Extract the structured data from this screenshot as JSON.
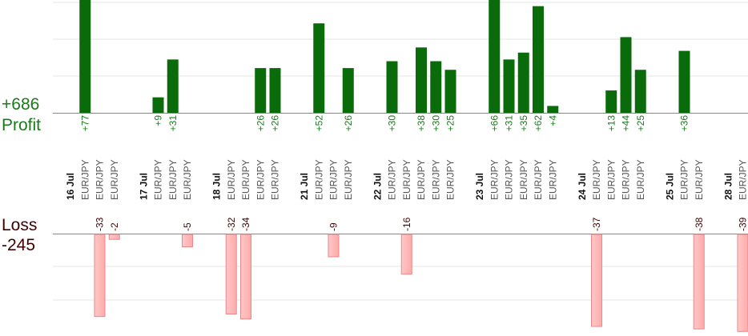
{
  "summary": {
    "profit_total": "+686",
    "profit_label": "Profit",
    "loss_label": "Loss",
    "loss_total": "-245"
  },
  "colors": {
    "profit_bar": "#0a6b0a",
    "profit_text": "#1a7a1a",
    "loss_bar": "#ffaaaa",
    "loss_text": "#400000",
    "grid": "#e6e6e6",
    "axis": "#888888"
  },
  "chart_data": {
    "type": "bar",
    "profit_ylim": [
      0,
      70
    ],
    "loss_ylim": [
      0,
      30
    ],
    "grid": true,
    "slots": [
      {
        "label": "16 Jul",
        "kind": "date"
      },
      {
        "label": "EUR/JPY",
        "kind": "pair",
        "profit": "+77",
        "value": 77
      },
      {
        "label": "EUR/JPY",
        "kind": "pair",
        "loss": "-33",
        "value": -33
      },
      {
        "label": "EUR/JPY",
        "kind": "pair",
        "loss": "-2",
        "value": -2
      },
      {
        "label": "",
        "kind": "gap"
      },
      {
        "label": "17 Jul",
        "kind": "date"
      },
      {
        "label": "EUR/JPY",
        "kind": "pair",
        "profit": "+9",
        "value": 9
      },
      {
        "label": "EUR/JPY",
        "kind": "pair",
        "profit": "+31",
        "value": 31
      },
      {
        "label": "EUR/JPY",
        "kind": "pair",
        "loss": "-5",
        "value": -5
      },
      {
        "label": "",
        "kind": "gap"
      },
      {
        "label": "18 Jul",
        "kind": "date"
      },
      {
        "label": "EUR/JPY",
        "kind": "pair",
        "loss": "-32",
        "value": -32
      },
      {
        "label": "EUR/JPY",
        "kind": "pair",
        "loss": "-34",
        "value": -34
      },
      {
        "label": "EUR/JPY",
        "kind": "pair",
        "profit": "+26",
        "value": 26
      },
      {
        "label": "EUR/JPY",
        "kind": "pair",
        "profit": "+26",
        "value": 26
      },
      {
        "label": "",
        "kind": "gap"
      },
      {
        "label": "21 Jul",
        "kind": "date"
      },
      {
        "label": "EUR/JPY",
        "kind": "pair",
        "profit": "+52",
        "value": 52
      },
      {
        "label": "EUR/JPY",
        "kind": "pair",
        "loss": "-9",
        "value": -9
      },
      {
        "label": "EUR/JPY",
        "kind": "pair",
        "profit": "+26",
        "value": 26
      },
      {
        "label": "",
        "kind": "gap"
      },
      {
        "label": "22 Jul",
        "kind": "date"
      },
      {
        "label": "EUR/JPY",
        "kind": "pair",
        "profit": "+30",
        "value": 30
      },
      {
        "label": "EUR/JPY",
        "kind": "pair",
        "loss": "-16",
        "value": -16
      },
      {
        "label": "EUR/JPY",
        "kind": "pair",
        "profit": "+38",
        "value": 38
      },
      {
        "label": "EUR/JPY",
        "kind": "pair",
        "profit": "+30",
        "value": 30
      },
      {
        "label": "EUR/JPY",
        "kind": "pair",
        "profit": "+25",
        "value": 25
      },
      {
        "label": "",
        "kind": "gap"
      },
      {
        "label": "23 Jul",
        "kind": "date"
      },
      {
        "label": "EUR/JPY",
        "kind": "pair",
        "profit": "+66",
        "value": 66
      },
      {
        "label": "EUR/JPY",
        "kind": "pair",
        "profit": "+31",
        "value": 31
      },
      {
        "label": "EUR/JPY",
        "kind": "pair",
        "profit": "+35",
        "value": 35
      },
      {
        "label": "EUR/JPY",
        "kind": "pair",
        "profit": "+62",
        "value": 62
      },
      {
        "label": "EUR/JPY",
        "kind": "pair",
        "profit": "+4",
        "value": 4
      },
      {
        "label": "",
        "kind": "gap"
      },
      {
        "label": "24 Jul",
        "kind": "date"
      },
      {
        "label": "EUR/JPY",
        "kind": "pair",
        "loss": "-37",
        "value": -37
      },
      {
        "label": "EUR/JPY",
        "kind": "pair",
        "profit": "+13",
        "value": 13
      },
      {
        "label": "EUR/JPY",
        "kind": "pair",
        "profit": "+44",
        "value": 44
      },
      {
        "label": "EUR/JPY",
        "kind": "pair",
        "profit": "+25",
        "value": 25
      },
      {
        "label": "",
        "kind": "gap"
      },
      {
        "label": "25 Jul",
        "kind": "date"
      },
      {
        "label": "EUR/JPY",
        "kind": "pair",
        "profit": "+36",
        "value": 36
      },
      {
        "label": "EUR/JPY",
        "kind": "pair",
        "loss": "-38",
        "value": -38
      },
      {
        "label": "",
        "kind": "gap"
      },
      {
        "label": "28 Jul",
        "kind": "date"
      },
      {
        "label": "EUR/JPY",
        "kind": "pair",
        "loss": "-39",
        "value": -39
      }
    ]
  }
}
